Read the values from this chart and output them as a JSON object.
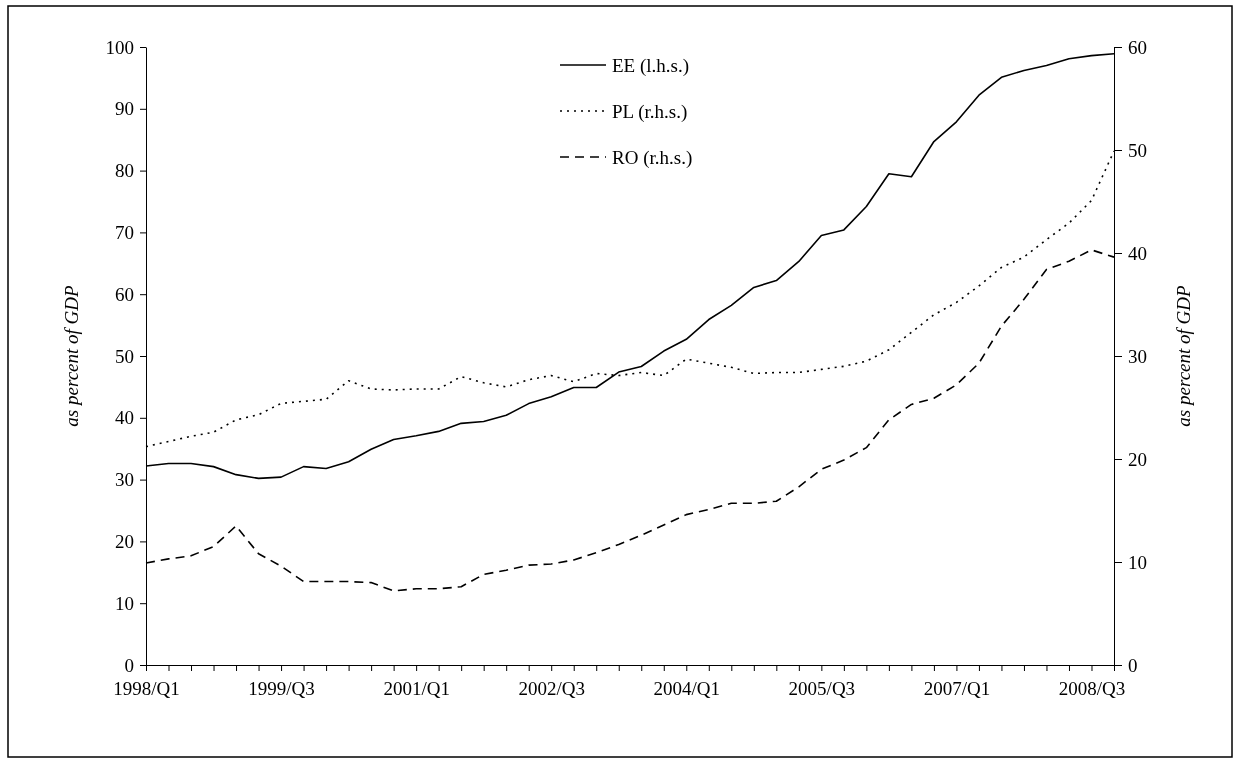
{
  "chart_data": {
    "type": "line",
    "ylabel": "as percent of GDP",
    "y2label": "as percent of GDP",
    "categories": [
      "1998/Q1",
      null,
      null,
      null,
      null,
      null,
      "1999/Q3",
      null,
      null,
      null,
      null,
      null,
      "2001/Q1",
      null,
      null,
      null,
      null,
      null,
      "2002/Q3",
      null,
      null,
      null,
      null,
      null,
      "2004/Q1",
      null,
      null,
      null,
      null,
      null,
      "2005/Q3",
      null,
      null,
      null,
      null,
      null,
      "2007/Q1",
      null,
      null,
      null,
      null,
      null,
      "2008/Q3",
      null
    ],
    "ylim": [
      0,
      100
    ],
    "yticks": [
      0,
      10,
      20,
      30,
      40,
      50,
      60,
      70,
      80,
      90,
      100
    ],
    "y2lim": [
      0,
      60
    ],
    "y2ticks": [
      0,
      10,
      20,
      30,
      40,
      50,
      60
    ],
    "legend": "top",
    "grid": false,
    "series": [
      {
        "name": "EE (l.h.s.)",
        "color": "#000000",
        "line_style": "solid",
        "values": [
          32.2,
          32.6,
          32.6,
          32.1,
          30.8,
          30.2,
          30.4,
          32.1,
          31.8,
          32.9,
          34.9,
          36.5,
          37.1,
          37.8,
          39.1,
          39.4,
          40.4,
          42.3,
          43.4,
          44.9,
          44.9,
          47.4,
          48.3,
          50.8,
          52.7,
          55.9,
          58.2,
          61.1,
          62.2,
          65.3,
          69.5,
          70.4,
          74.2,
          79.5,
          79.0,
          84.7,
          87.9,
          92.2,
          95.1,
          96.2,
          97.0,
          98.1,
          98.6,
          98.9
        ]
      },
      {
        "name": "PL (r.h.s.)",
        "color": "#000000",
        "line_style": "dotted",
        "axis": "y2",
        "values": [
          21.2,
          21.7,
          22.2,
          22.6,
          23.8,
          24.3,
          25.4,
          25.6,
          25.8,
          27.6,
          26.8,
          26.7,
          26.8,
          26.8,
          28.0,
          27.4,
          27.0,
          27.7,
          28.1,
          27.5,
          28.3,
          28.1,
          28.4,
          28.1,
          29.7,
          29.3,
          28.9,
          28.3,
          28.4,
          28.4,
          28.7,
          29.0,
          29.5,
          30.6,
          32.3,
          34.0,
          35.2,
          36.8,
          38.6,
          39.6,
          41.3,
          42.9,
          45.1,
          49.9
        ]
      },
      {
        "name": "RO (r.h.s.)",
        "color": "#000000",
        "line_style": "dashed",
        "axis": "y2",
        "values": [
          9.9,
          10.3,
          10.6,
          11.5,
          13.5,
          10.8,
          9.6,
          8.1,
          8.1,
          8.1,
          8.0,
          7.2,
          7.4,
          7.4,
          7.6,
          8.8,
          9.2,
          9.7,
          9.8,
          10.2,
          10.9,
          11.7,
          12.6,
          13.6,
          14.6,
          15.1,
          15.7,
          15.7,
          15.9,
          17.3,
          19.0,
          19.9,
          21.1,
          23.8,
          25.3,
          25.9,
          27.2,
          29.3,
          32.9,
          35.5,
          38.4,
          39.2,
          40.3,
          39.6
        ]
      }
    ]
  }
}
